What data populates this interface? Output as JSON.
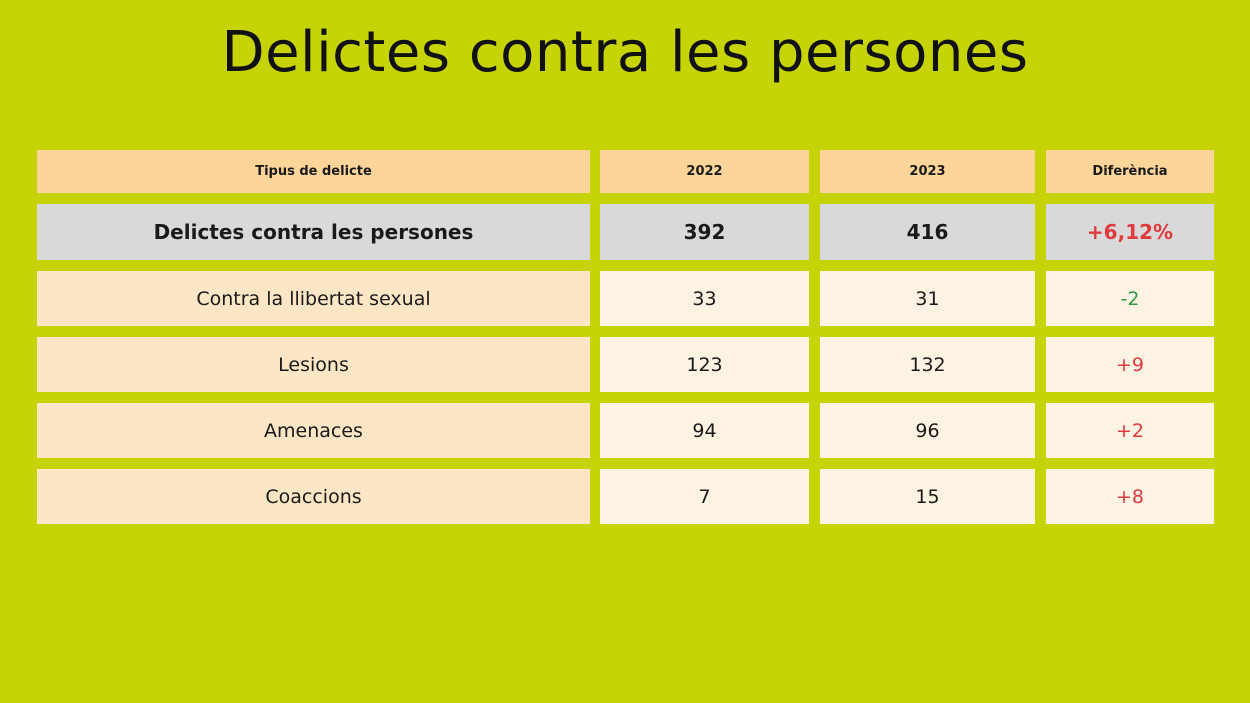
{
  "title": "Delictes contra les persones",
  "colors": {
    "background": "#c6d406",
    "header": "#fdd59a",
    "total_row": "#d9d9d9",
    "category_cell": "#fde6c5",
    "value_cell": "#fef3e3",
    "increase": "#e0393e",
    "decrease": "#2e9a47"
  },
  "chart_data": {
    "type": "table",
    "title": "Delictes contra les persones",
    "columns": [
      "Tipus de delicte",
      "2022",
      "2023",
      "Diferència"
    ],
    "total": {
      "label": "Delictes contra les persones",
      "v2022": "392",
      "v2023": "416",
      "diff": "+6,12%",
      "trend": "up"
    },
    "rows": [
      {
        "label": "Contra la llibertat sexual",
        "v2022": "33",
        "v2023": "31",
        "diff": "-2",
        "trend": "down"
      },
      {
        "label": "Lesions",
        "v2022": "123",
        "v2023": "132",
        "diff": "+9",
        "trend": "up"
      },
      {
        "label": "Amenaces",
        "v2022": "94",
        "v2023": "96",
        "diff": "+2",
        "trend": "up"
      },
      {
        "label": "Coaccions",
        "v2022": "7",
        "v2023": "15",
        "diff": "+8",
        "trend": "up"
      }
    ]
  }
}
